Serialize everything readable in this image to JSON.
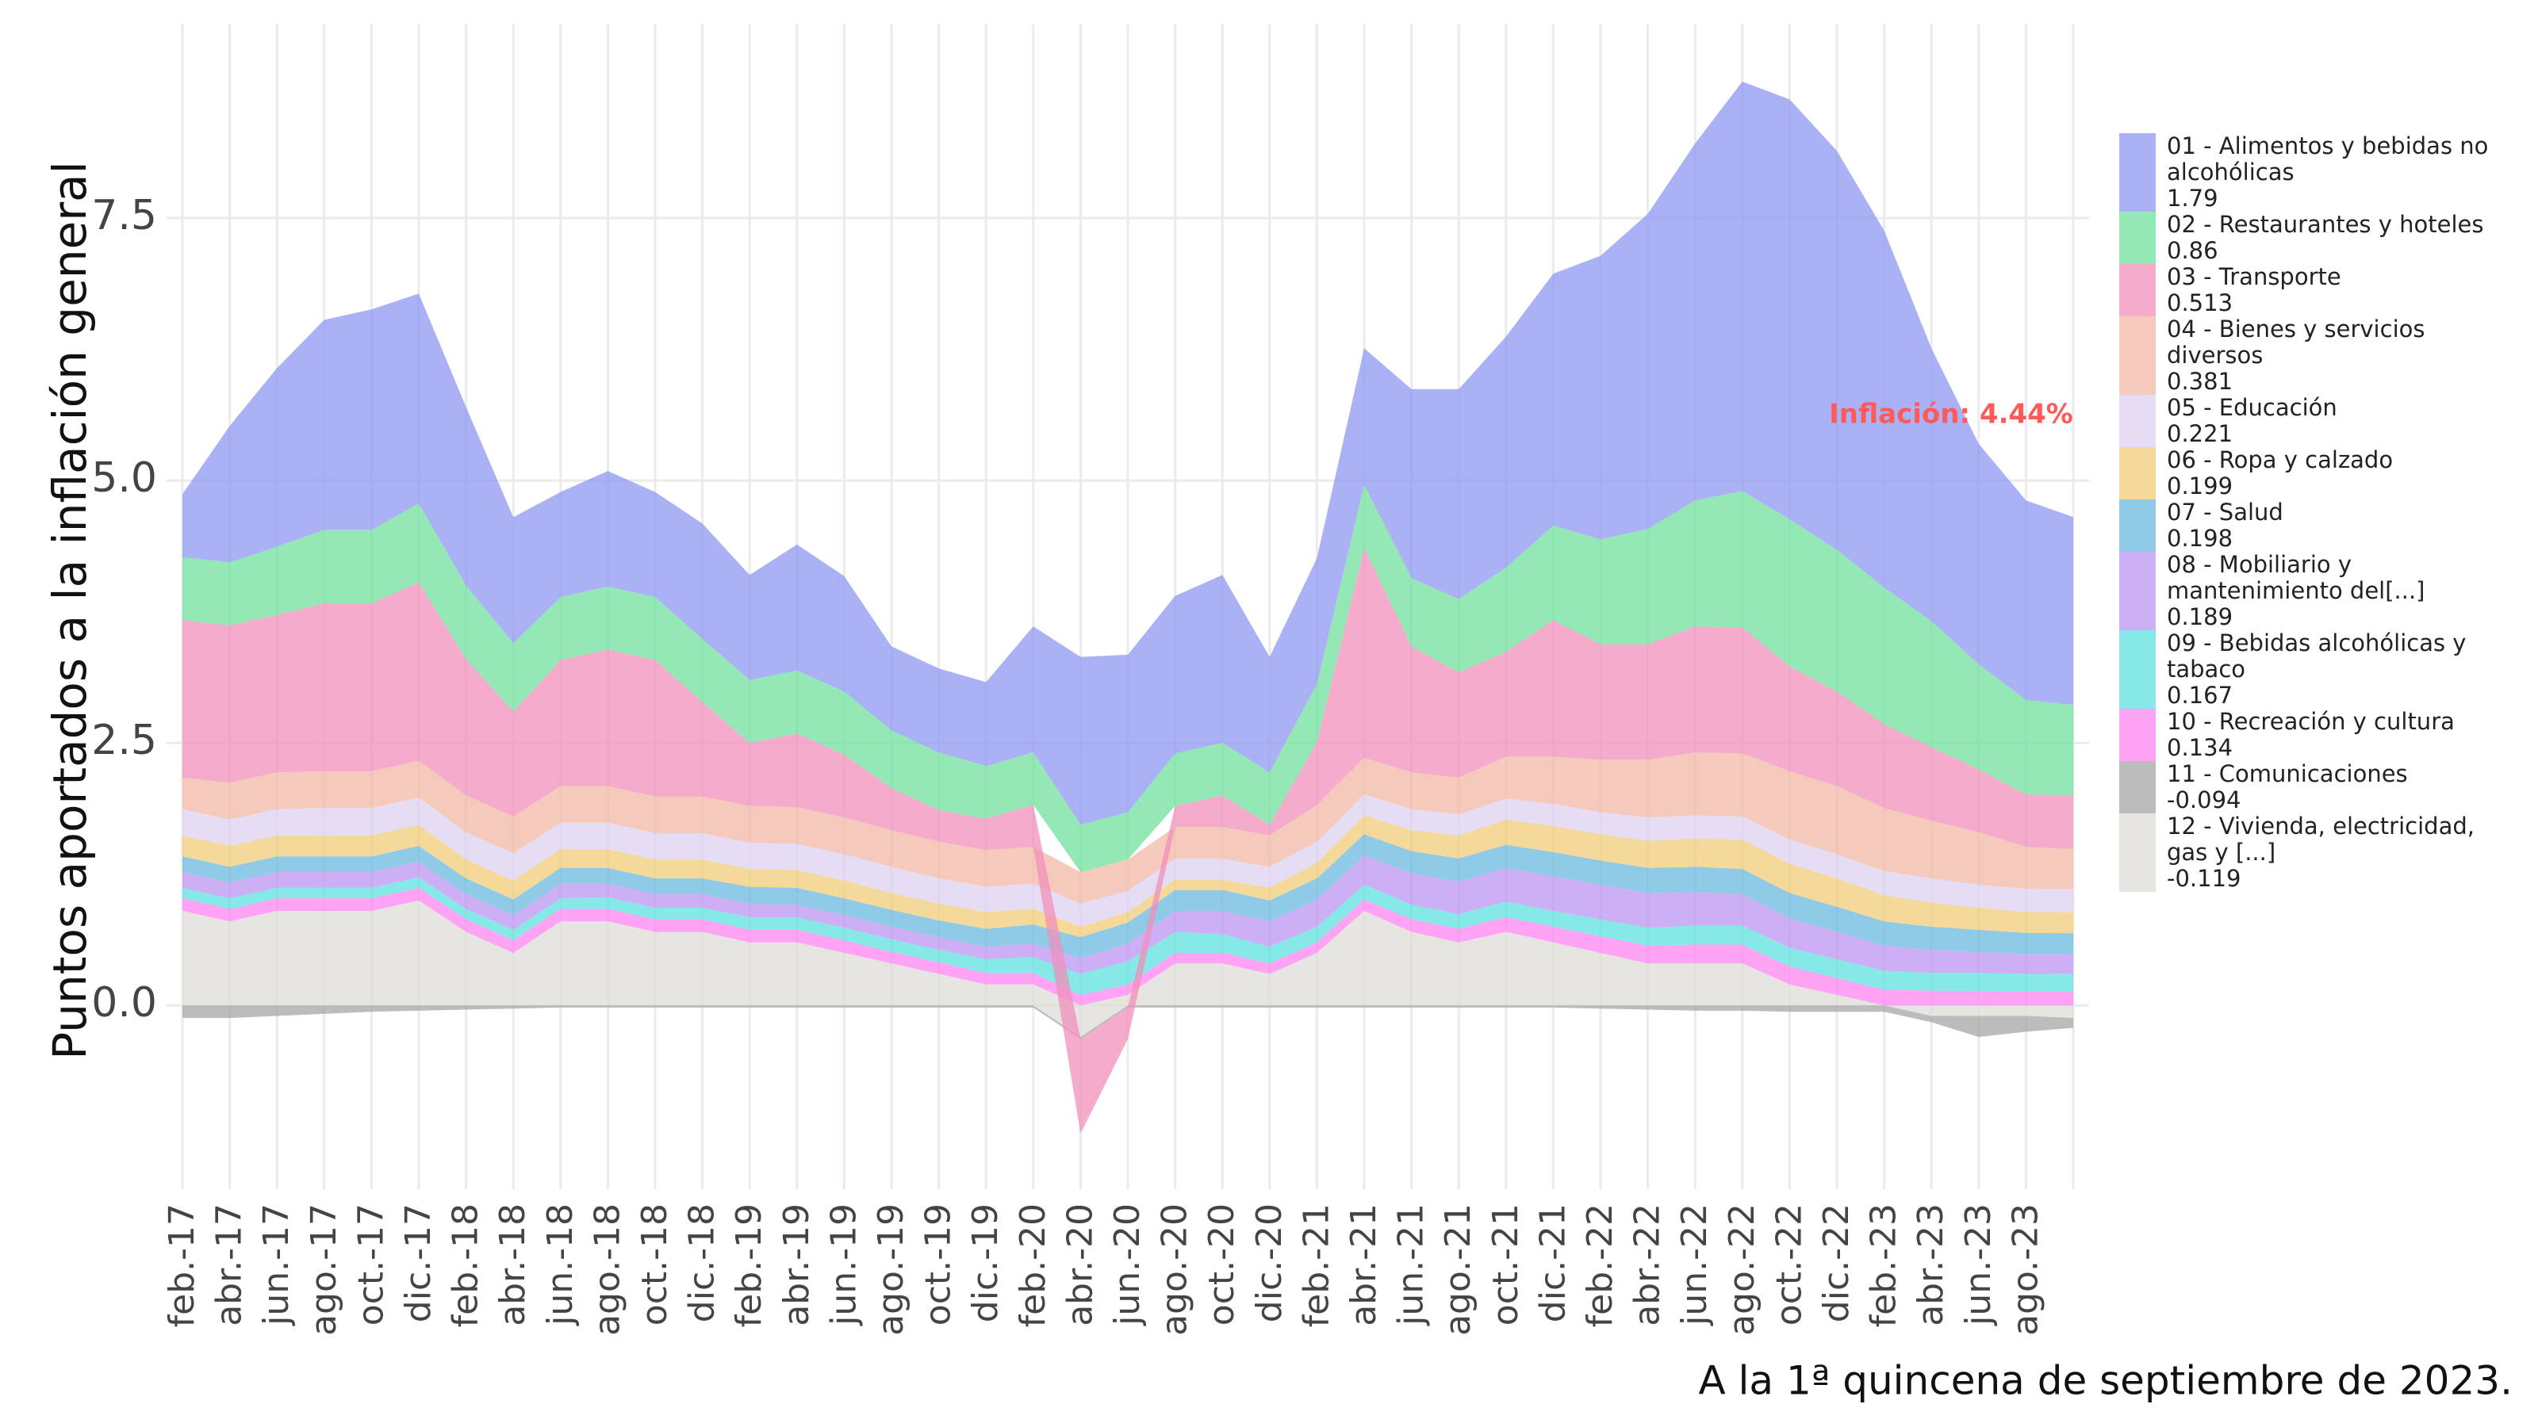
{
  "chart_data": {
    "type": "area",
    "y_label": "Puntos aportados a la inflación general",
    "caption": "A la 1ª quincena de septiembre de 2023.",
    "annotation": "Inflación: 4.44%",
    "ylim": [
      -1.75,
      9.35
    ],
    "yticks": [
      {
        "value": 0,
        "label": "0.0"
      },
      2.5,
      {
        "value": 5,
        "label": "5.0"
      },
      7.5
    ],
    "grid": true,
    "stacked": true,
    "categories": [
      "feb.-17",
      "abr.-17",
      "jun.-17",
      "ago.-17",
      "oct.-17",
      "dic.-17",
      "feb.-18",
      "abr.-18",
      "jun.-18",
      "ago.-18",
      "oct.-18",
      "dic.-18",
      "feb.-19",
      "abr.-19",
      "jun.-19",
      "ago.-19",
      "oct.-19",
      "dic.-19",
      "feb.-20",
      "abr.-20",
      "jun.-20",
      "ago.-20",
      "oct.-20",
      "dic.-20",
      "feb.-21",
      "abr.-21",
      "jun.-21",
      "ago.-21",
      "oct.-21",
      "dic.-21",
      "feb.-22",
      "abr.-22",
      "jun.-22",
      "ago.-22",
      "oct.-22",
      "dic.-22",
      "feb.-23",
      "abr.-23",
      "jun.-23",
      "ago.-23",
      null
    ],
    "series": [
      {
        "name": "01 - Alimentos y bebidas no alcohólicas",
        "color": "#8f97f2",
        "values": [
          0.6,
          1.3,
          1.7,
          2.0,
          2.1,
          2.0,
          1.7,
          1.2,
          1.0,
          1.1,
          1.0,
          1.1,
          1.0,
          1.2,
          1.1,
          0.8,
          0.8,
          0.8,
          1.2,
          1.6,
          1.5,
          1.5,
          1.6,
          1.1,
          1.2,
          1.3,
          1.8,
          2.0,
          2.2,
          2.4,
          2.7,
          3.0,
          3.4,
          3.9,
          4.0,
          3.8,
          3.4,
          2.6,
          2.1,
          1.9,
          1.79
        ]
      },
      {
        "name": "02 - Restaurantes y hoteles",
        "color": "#6fe09e",
        "values": [
          0.6,
          0.6,
          0.65,
          0.7,
          0.7,
          0.75,
          0.7,
          0.65,
          0.6,
          0.6,
          0.6,
          0.6,
          0.6,
          0.6,
          0.6,
          0.55,
          0.55,
          0.5,
          0.5,
          0.45,
          0.45,
          0.5,
          0.5,
          0.5,
          0.55,
          0.6,
          0.65,
          0.7,
          0.8,
          0.9,
          1.0,
          1.1,
          1.2,
          1.3,
          1.4,
          1.35,
          1.3,
          1.2,
          1.0,
          0.9,
          0.86
        ]
      },
      {
        "name": "03 - Transporte",
        "color": "#f08fbb",
        "values": [
          1.5,
          1.5,
          1.5,
          1.6,
          1.6,
          1.7,
          1.3,
          1.0,
          1.2,
          1.3,
          1.3,
          0.9,
          0.6,
          0.7,
          0.6,
          0.4,
          0.3,
          0.3,
          0.4,
          -0.9,
          -0.3,
          0.2,
          0.3,
          0.1,
          0.6,
          2.0,
          1.2,
          1.0,
          1.0,
          1.3,
          1.1,
          1.1,
          1.2,
          1.2,
          1.0,
          0.9,
          0.8,
          0.7,
          0.6,
          0.5,
          0.513
        ]
      },
      {
        "name": "04 - Bienes y servicios diversos",
        "color": "#f2b8a6",
        "values": [
          0.3,
          0.35,
          0.35,
          0.35,
          0.35,
          0.35,
          0.35,
          0.35,
          0.35,
          0.35,
          0.35,
          0.35,
          0.35,
          0.35,
          0.35,
          0.35,
          0.35,
          0.35,
          0.35,
          0.3,
          0.3,
          0.3,
          0.3,
          0.3,
          0.35,
          0.35,
          0.35,
          0.35,
          0.4,
          0.45,
          0.5,
          0.55,
          0.6,
          0.6,
          0.65,
          0.65,
          0.6,
          0.55,
          0.5,
          0.4,
          0.381
        ]
      },
      {
        "name": "05 - Educación",
        "color": "#dcd2f0",
        "values": [
          0.25,
          0.25,
          0.25,
          0.26,
          0.26,
          0.26,
          0.26,
          0.26,
          0.25,
          0.25,
          0.25,
          0.25,
          0.25,
          0.25,
          0.25,
          0.25,
          0.24,
          0.24,
          0.24,
          0.22,
          0.2,
          0.2,
          0.2,
          0.2,
          0.2,
          0.2,
          0.2,
          0.2,
          0.2,
          0.21,
          0.21,
          0.22,
          0.22,
          0.22,
          0.23,
          0.23,
          0.23,
          0.23,
          0.22,
          0.22,
          0.221
        ]
      },
      {
        "name": "06 - Ropa y calzado",
        "color": "#f0cc78",
        "values": [
          0.2,
          0.2,
          0.2,
          0.2,
          0.2,
          0.2,
          0.18,
          0.18,
          0.18,
          0.18,
          0.18,
          0.18,
          0.17,
          0.17,
          0.17,
          0.16,
          0.16,
          0.16,
          0.15,
          0.1,
          0.1,
          0.1,
          0.1,
          0.12,
          0.15,
          0.18,
          0.2,
          0.22,
          0.24,
          0.25,
          0.25,
          0.26,
          0.27,
          0.28,
          0.28,
          0.27,
          0.25,
          0.23,
          0.21,
          0.2,
          0.199
        ]
      },
      {
        "name": "07 - Salud",
        "color": "#6ab8de",
        "values": [
          0.15,
          0.15,
          0.15,
          0.15,
          0.15,
          0.15,
          0.15,
          0.15,
          0.15,
          0.15,
          0.15,
          0.15,
          0.16,
          0.16,
          0.16,
          0.16,
          0.16,
          0.17,
          0.18,
          0.2,
          0.2,
          0.2,
          0.2,
          0.2,
          0.2,
          0.2,
          0.21,
          0.22,
          0.22,
          0.23,
          0.23,
          0.24,
          0.24,
          0.24,
          0.24,
          0.24,
          0.23,
          0.22,
          0.21,
          0.2,
          0.198
        ]
      },
      {
        "name": "08 - Mobiliario y mantenimiento del[...]",
        "color": "#bb94f2",
        "values": [
          0.15,
          0.15,
          0.15,
          0.15,
          0.15,
          0.15,
          0.14,
          0.14,
          0.14,
          0.13,
          0.13,
          0.13,
          0.13,
          0.12,
          0.12,
          0.12,
          0.12,
          0.12,
          0.13,
          0.15,
          0.17,
          0.2,
          0.22,
          0.24,
          0.26,
          0.28,
          0.3,
          0.31,
          0.32,
          0.33,
          0.33,
          0.33,
          0.32,
          0.3,
          0.28,
          0.26,
          0.24,
          0.22,
          0.2,
          0.19,
          0.189
        ]
      },
      {
        "name": "09 - Bebidas alcohólicas y tabaco",
        "color": "#5fe0e0",
        "values": [
          0.1,
          0.1,
          0.1,
          0.1,
          0.1,
          0.1,
          0.1,
          0.1,
          0.1,
          0.11,
          0.11,
          0.11,
          0.12,
          0.12,
          0.12,
          0.12,
          0.12,
          0.13,
          0.15,
          0.2,
          0.22,
          0.2,
          0.18,
          0.16,
          0.15,
          0.14,
          0.14,
          0.14,
          0.15,
          0.15,
          0.16,
          0.17,
          0.18,
          0.18,
          0.18,
          0.18,
          0.18,
          0.17,
          0.17,
          0.17,
          0.167
        ]
      },
      {
        "name": "10 - Recreación y cultura",
        "color": "#ff85f2",
        "values": [
          0.12,
          0.12,
          0.12,
          0.12,
          0.12,
          0.12,
          0.12,
          0.12,
          0.12,
          0.12,
          0.12,
          0.12,
          0.12,
          0.12,
          0.12,
          0.11,
          0.11,
          0.11,
          0.11,
          0.1,
          0.1,
          0.1,
          0.1,
          0.1,
          0.1,
          0.11,
          0.12,
          0.13,
          0.14,
          0.15,
          0.16,
          0.17,
          0.18,
          0.18,
          0.17,
          0.16,
          0.15,
          0.14,
          0.14,
          0.13,
          0.134
        ]
      },
      {
        "name": "11 - Comunicaciones",
        "color": "#a6a6a6",
        "values": [
          -0.12,
          -0.12,
          -0.1,
          -0.08,
          -0.06,
          -0.05,
          -0.04,
          -0.03,
          -0.02,
          -0.02,
          -0.02,
          -0.02,
          -0.02,
          -0.02,
          -0.02,
          -0.02,
          -0.02,
          -0.02,
          -0.02,
          -0.02,
          -0.02,
          -0.02,
          -0.02,
          -0.02,
          -0.02,
          -0.02,
          -0.02,
          -0.02,
          -0.02,
          -0.02,
          -0.03,
          -0.04,
          -0.05,
          -0.05,
          -0.06,
          -0.06,
          -0.06,
          -0.06,
          -0.2,
          -0.15,
          -0.094
        ]
      },
      {
        "name": "12 - Vivienda, electricidad, gas y [...]",
        "color": "#dedcd8",
        "values": [
          0.9,
          0.8,
          0.9,
          0.9,
          0.9,
          1.0,
          0.7,
          0.5,
          0.8,
          0.8,
          0.7,
          0.7,
          0.6,
          0.6,
          0.5,
          0.4,
          0.3,
          0.2,
          0.2,
          -0.3,
          0.1,
          0.4,
          0.4,
          0.3,
          0.5,
          0.9,
          0.7,
          0.6,
          0.7,
          0.6,
          0.5,
          0.4,
          0.4,
          0.4,
          0.2,
          0.1,
          0.0,
          -0.1,
          -0.1,
          -0.1,
          -0.119
        ]
      }
    ]
  }
}
